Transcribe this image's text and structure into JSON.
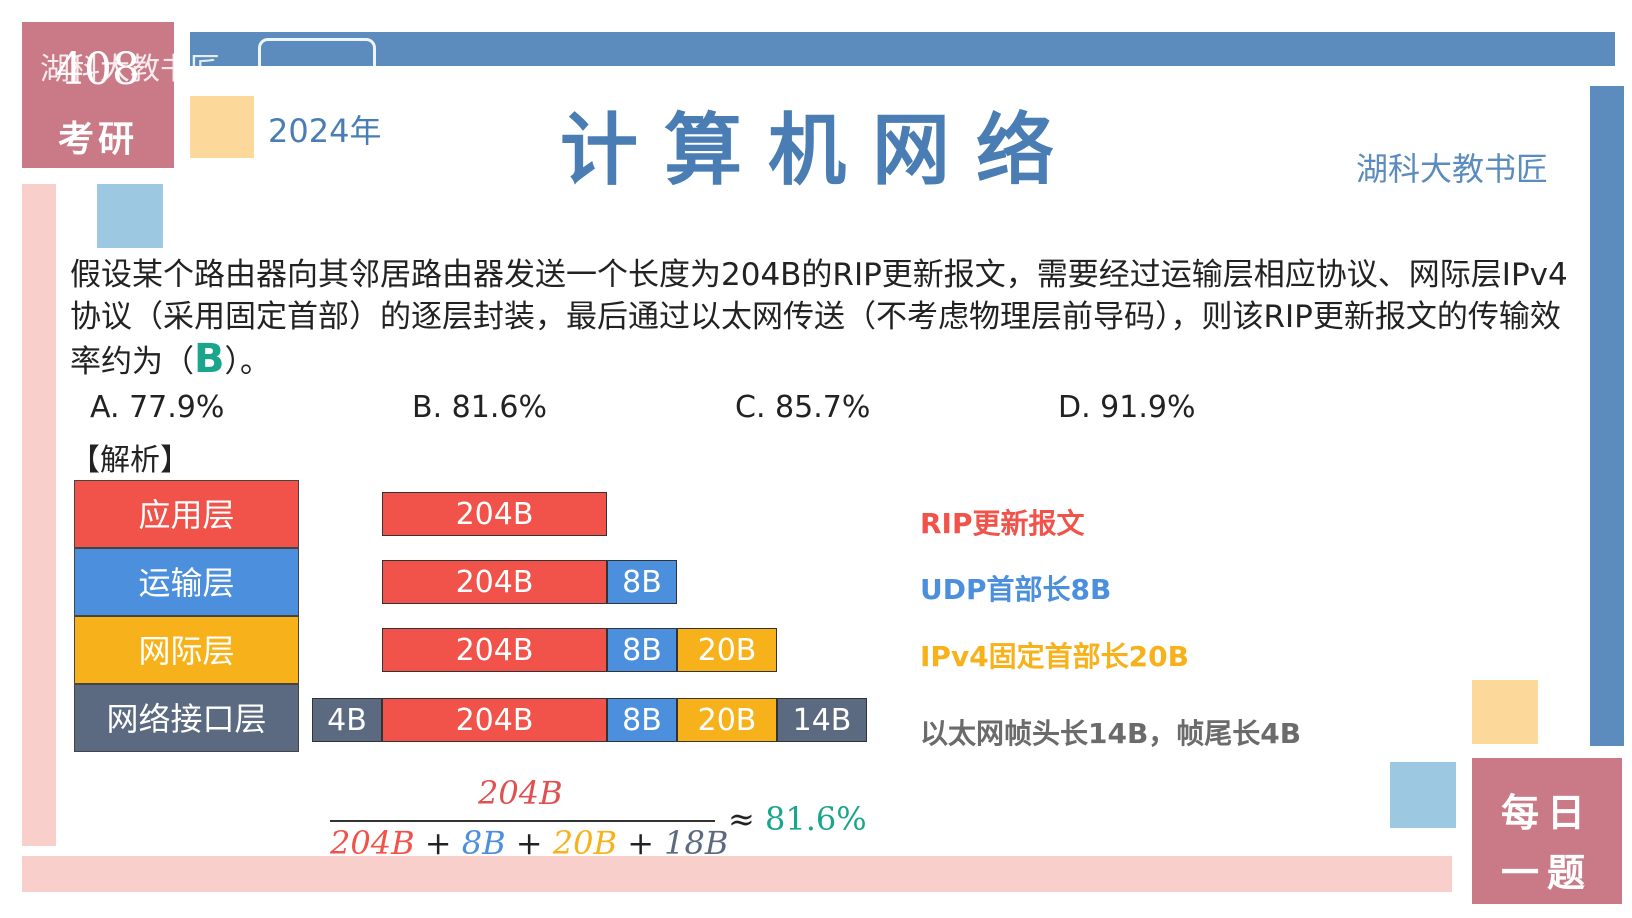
{
  "header": {
    "badge_number": "408",
    "badge_text": "考研",
    "watermark": "湖科大教书匠",
    "year": "2024年",
    "title": "计算机网络",
    "author": "湖科大教书匠",
    "corner_badge_line1": "每日",
    "corner_badge_line2": "一题"
  },
  "question": {
    "text_before": "假设某个路由器向其邻居路由器发送一个长度为204B的RIP更新报文，需要经过运输层相应协议、网际层IPv4协议（采用固定首部）的逐层封装，最后通过以太网传送（不考虑物理层前导码），则该RIP更新报文的传输效率约为（",
    "answer": "B",
    "text_after": "）。",
    "options": [
      "A. 77.9%",
      "B. 81.6%",
      "C. 85.7%",
      "D. 91.9%"
    ]
  },
  "analysis": {
    "label": "【解析】",
    "layers": [
      "应用层",
      "运输层",
      "网际层",
      "网络接口层"
    ],
    "rows": [
      {
        "segments": [
          "204B"
        ],
        "note": "RIP更新报文",
        "note_color": "#f15249"
      },
      {
        "segments": [
          "204B",
          "8B"
        ],
        "note": "UDP首部长8B",
        "note_color": "#4c8fdc"
      },
      {
        "segments": [
          "204B",
          "8B",
          "20B"
        ],
        "note": "IPv4固定首部长20B",
        "note_color": "#f7b21b"
      },
      {
        "segments": [
          "4B",
          "204B",
          "8B",
          "20B",
          "14B"
        ],
        "note": "以太网帧头长14B，帧尾长4B",
        "note_color": "#6b6b6b"
      }
    ],
    "formula": {
      "numerator": "204B",
      "den_terms": [
        "204B",
        "8B",
        "20B",
        "18B"
      ],
      "plus": "+",
      "approx": "≈",
      "result": "81.6%"
    }
  },
  "colors": {
    "red": "#f15249",
    "blue": "#4c8fdc",
    "yellow": "#f7b21b",
    "gray": "#5b6a80",
    "accent": "#4a7db3",
    "answer": "#1aa58c"
  }
}
